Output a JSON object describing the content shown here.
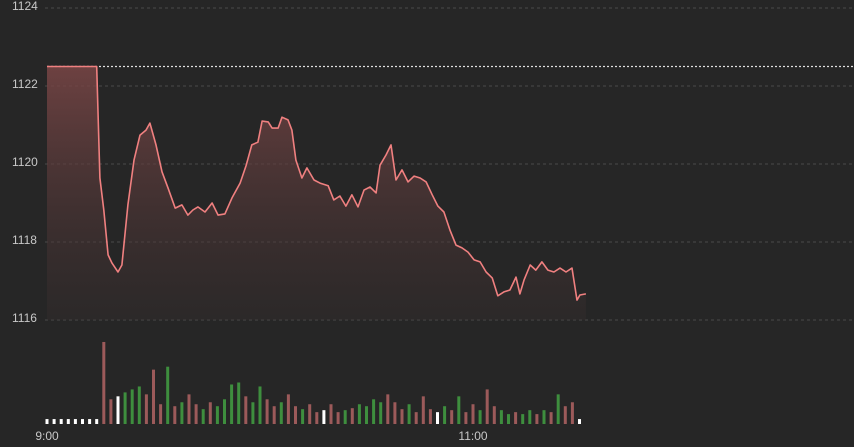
{
  "chart_data": {
    "type": "line",
    "x": [
      0,
      14,
      14.9,
      16,
      17.2,
      18.3,
      20,
      21.1,
      22.8,
      24.5,
      26.2,
      27.9,
      29,
      30.7,
      32.4,
      34.1,
      36.1,
      38,
      39.7,
      41.1,
      42.5,
      44.5,
      46.5,
      48.2,
      50.1,
      52.1,
      54.4,
      56.1,
      57.7,
      59.4,
      60.6,
      62.3,
      63.4,
      65.1,
      66.2,
      67.9,
      69,
      70.1,
      71.8,
      73.2,
      75.2,
      76.9,
      79.2,
      80.8,
      82.5,
      84.2,
      85.9,
      87.6,
      89.3,
      91,
      92.7,
      93.8,
      95.5,
      96.9,
      98.3,
      100,
      101.7,
      103.4,
      105.1,
      106.8,
      108.5,
      110.1,
      111.8,
      113.5,
      115.2,
      116.9,
      118.6,
      120.3,
      122,
      123.7,
      125.4,
      127,
      128.7,
      130.4,
      132.1,
      133.2,
      134.4,
      136.1,
      137.7,
      139.4,
      141.1,
      142.8,
      144.5,
      146.2,
      147.9,
      149.3,
      150.1,
      151.8
    ],
    "series": [
      {
        "color": "#f08080",
        "values": [
          1122.5,
          1122.5,
          1119.64,
          1118.82,
          1117.67,
          1117.46,
          1117.23,
          1117.41,
          1118.95,
          1120.1,
          1120.74,
          1120.87,
          1121.05,
          1120.49,
          1119.8,
          1119.38,
          1118.87,
          1118.95,
          1118.69,
          1118.82,
          1118.9,
          1118.77,
          1119.0,
          1118.69,
          1118.72,
          1119.13,
          1119.51,
          1119.97,
          1120.49,
          1120.56,
          1121.1,
          1121.08,
          1120.92,
          1120.92,
          1121.2,
          1121.13,
          1120.87,
          1120.1,
          1119.64,
          1119.9,
          1119.59,
          1119.51,
          1119.44,
          1119.08,
          1119.18,
          1118.92,
          1119.21,
          1118.9,
          1119.33,
          1119.41,
          1119.26,
          1119.97,
          1120.23,
          1120.49,
          1119.59,
          1119.85,
          1119.54,
          1119.69,
          1119.64,
          1119.54,
          1119.21,
          1118.92,
          1118.77,
          1118.31,
          1117.92,
          1117.85,
          1117.74,
          1117.54,
          1117.49,
          1117.23,
          1117.08,
          1116.62,
          1116.72,
          1116.77,
          1117.1,
          1116.67,
          1117.03,
          1117.41,
          1117.28,
          1117.49,
          1117.28,
          1117.23,
          1117.33,
          1117.23,
          1117.33,
          1116.51,
          1116.64,
          1116.67
        ]
      }
    ],
    "prev_close": 1122.5,
    "xlim": [
      0,
      227
    ],
    "xticks": [
      {
        "value": 0,
        "label": "9:00"
      },
      {
        "value": 120,
        "label": "11:00"
      }
    ],
    "ylim": [
      1116,
      1124
    ],
    "yticks": [
      1116,
      1118,
      1120,
      1122,
      1124
    ],
    "grid": true,
    "volume": {
      "x": [
        0,
        2,
        4,
        6,
        8,
        10,
        12,
        14,
        16,
        18,
        20,
        22,
        24,
        26,
        28,
        30,
        32,
        34,
        36,
        38,
        40,
        42,
        44,
        46,
        48,
        50,
        52,
        54,
        56,
        58,
        60,
        62,
        64,
        66,
        68,
        70,
        72,
        74,
        76,
        78,
        80,
        82,
        84,
        86,
        88,
        90,
        92,
        94,
        96,
        98,
        100,
        102,
        104,
        106,
        108,
        110,
        112,
        114,
        116,
        118,
        120,
        122,
        124,
        126,
        128,
        130,
        132,
        134,
        136,
        138,
        140,
        142,
        144,
        146,
        148,
        150
      ],
      "values": [
        5,
        5,
        5,
        5,
        5,
        5,
        5,
        5,
        83,
        25,
        28,
        32,
        35,
        38,
        30,
        55,
        20,
        58,
        18,
        22,
        30,
        20,
        15,
        22,
        18,
        25,
        40,
        42,
        28,
        22,
        38,
        25,
        18,
        22,
        30,
        18,
        15,
        20,
        12,
        14,
        20,
        12,
        14,
        16,
        20,
        18,
        25,
        22,
        30,
        22,
        15,
        20,
        12,
        28,
        15,
        12,
        18,
        14,
        28,
        12,
        20,
        14,
        35,
        18,
        14,
        10,
        12,
        10,
        14,
        10,
        14,
        12,
        30,
        18,
        22,
        5
      ],
      "colors": [
        "#ffffff",
        "#ffffff",
        "#ffffff",
        "#ffffff",
        "#ffffff",
        "#ffffff",
        "#ffffff",
        "#ffffff",
        "#9c5a5a",
        "#9c5a5a",
        "#ffffff",
        "#3e8e3e",
        "#3e8e3e",
        "#3e8e3e",
        "#9c5a5a",
        "#9c5a5a",
        "#9c5a5a",
        "#3e8e3e",
        "#9c5a5a",
        "#3e8e3e",
        "#9c5a5a",
        "#9c5a5a",
        "#3e8e3e",
        "#9c5a5a",
        "#3e8e3e",
        "#3e8e3e",
        "#3e8e3e",
        "#3e8e3e",
        "#9c5a5a",
        "#3e8e3e",
        "#3e8e3e",
        "#9c5a5a",
        "#9c5a5a",
        "#3e8e3e",
        "#9c5a5a",
        "#9c5a5a",
        "#3e8e3e",
        "#9c5a5a",
        "#9c5a5a",
        "#ffffff",
        "#9c5a5a",
        "#9c5a5a",
        "#3e8e3e",
        "#9c5a5a",
        "#3e8e3e",
        "#3e8e3e",
        "#3e8e3e",
        "#3e8e3e",
        "#9c5a5a",
        "#9c5a5a",
        "#9c5a5a",
        "#3e8e3e",
        "#9c5a5a",
        "#9c5a5a",
        "#9c5a5a",
        "#ffffff",
        "#3e8e3e",
        "#9c5a5a",
        "#3e8e3e",
        "#9c5a5a",
        "#9c5a5a",
        "#3e8e3e",
        "#9c5a5a",
        "#9c5a5a",
        "#3e8e3e",
        "#3e8e3e",
        "#9c5a5a",
        "#3e8e3e",
        "#3e8e3e",
        "#9c5a5a",
        "#3e8e3e",
        "#9c5a5a",
        "#3e8e3e",
        "#9c5a5a",
        "#9c5a5a",
        "#ffffff"
      ],
      "ylim": [
        0,
        85
      ]
    }
  }
}
